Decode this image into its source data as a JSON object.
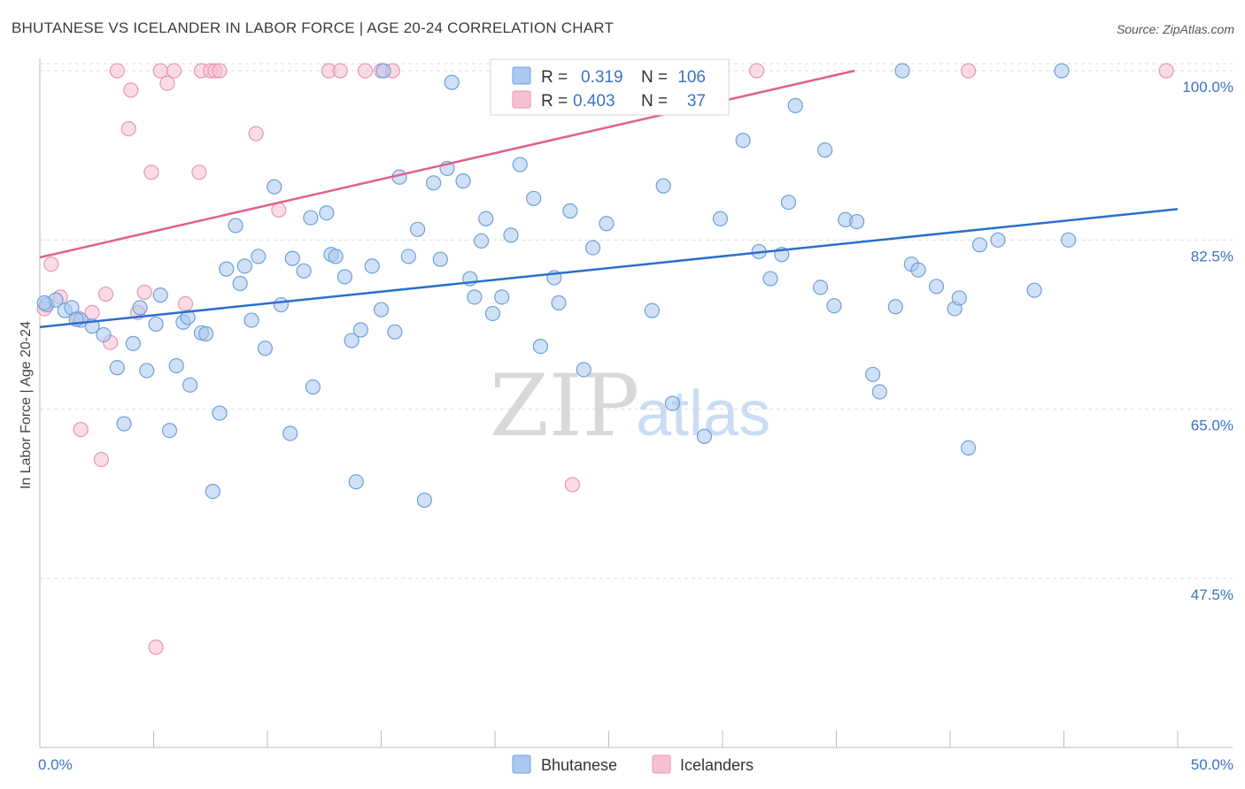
{
  "title": "BHUTANESE VS ICELANDER IN LABOR FORCE | AGE 20-24 CORRELATION CHART",
  "source": "Source: ZipAtlas.com",
  "watermark": {
    "zip": "ZIP",
    "atlas": "atlas"
  },
  "colors": {
    "bhutanese_fill": "#aac8f0",
    "bhutanese_stroke": "#6f9fd8",
    "bhutanese_line": "#2a6fcc",
    "icelanders_fill": "#f7c0d2",
    "icelanders_stroke": "#e896b2",
    "icelanders_line": "#e0608c",
    "axis_text": "#3b73c4",
    "grid": "#dddddd"
  },
  "legend": {
    "rows": [
      {
        "r_label": "R =",
        "r_value": "0.319",
        "n_label": "N =",
        "n_value": "106"
      },
      {
        "r_label": "R =",
        "r_value": "0.403",
        "n_label": "N =",
        "n_value": "37"
      }
    ]
  },
  "chart_data": {
    "type": "scatter",
    "title": "BHUTANESE VS ICELANDER IN LABOR FORCE | AGE 20-24 CORRELATION CHART",
    "xlabel": "",
    "ylabel": "In Labor Force | Age 20-24",
    "xlim": [
      0,
      50
    ],
    "ylim": [
      30,
      101
    ],
    "x_tick_labels": [
      "0.0%",
      "50.0%"
    ],
    "y_ticks": [
      47.5,
      65.0,
      82.5,
      100.0
    ],
    "y_tick_labels": [
      "47.5%",
      "65.0%",
      "82.5%",
      "100.0%"
    ],
    "grid": "horizontal dashed",
    "legend_placement": "top-center",
    "series": [
      {
        "name": "Bhutanese",
        "R": 0.319,
        "N": 106,
        "trendline": [
          [
            0,
            73.5
          ],
          [
            50,
            85.7
          ]
        ],
        "points": [
          [
            0.3,
            75.8
          ],
          [
            0.7,
            76.3
          ],
          [
            1.1,
            75.2
          ],
          [
            1.4,
            75.5
          ],
          [
            1.8,
            74.2
          ],
          [
            2.3,
            73.6
          ],
          [
            2.8,
            72.7
          ],
          [
            3.4,
            69.3
          ],
          [
            3.7,
            63.5
          ],
          [
            4.1,
            71.8
          ],
          [
            4.4,
            75.5
          ],
          [
            4.7,
            69.0
          ],
          [
            5.1,
            73.8
          ],
          [
            5.3,
            76.8
          ],
          [
            5.7,
            62.8
          ],
          [
            6.0,
            69.5
          ],
          [
            6.3,
            74.0
          ],
          [
            6.6,
            67.5
          ],
          [
            7.1,
            72.9
          ],
          [
            7.3,
            72.8
          ],
          [
            7.6,
            56.5
          ],
          [
            7.9,
            64.6
          ],
          [
            8.2,
            79.5
          ],
          [
            8.6,
            84.0
          ],
          [
            8.8,
            78.0
          ],
          [
            9.3,
            74.2
          ],
          [
            9.6,
            80.8
          ],
          [
            9.9,
            71.3
          ],
          [
            10.3,
            88.0
          ],
          [
            10.6,
            75.8
          ],
          [
            11.0,
            62.5
          ],
          [
            11.1,
            80.6
          ],
          [
            11.6,
            79.3
          ],
          [
            11.9,
            84.8
          ],
          [
            12.0,
            67.3
          ],
          [
            12.6,
            85.3
          ],
          [
            12.8,
            81.0
          ],
          [
            13.0,
            80.8
          ],
          [
            13.4,
            78.7
          ],
          [
            13.7,
            72.1
          ],
          [
            13.9,
            57.5
          ],
          [
            14.1,
            73.2
          ],
          [
            14.6,
            79.8
          ],
          [
            15.0,
            75.3
          ],
          [
            15.1,
            100.0
          ],
          [
            15.6,
            73.0
          ],
          [
            15.8,
            89.0
          ],
          [
            16.2,
            80.8
          ],
          [
            16.6,
            83.6
          ],
          [
            16.9,
            55.6
          ],
          [
            17.3,
            88.4
          ],
          [
            17.6,
            80.5
          ],
          [
            17.9,
            89.9
          ],
          [
            18.1,
            98.8
          ],
          [
            18.6,
            88.6
          ],
          [
            18.9,
            78.5
          ],
          [
            19.1,
            76.6
          ],
          [
            19.4,
            82.4
          ],
          [
            19.6,
            84.7
          ],
          [
            19.9,
            74.9
          ],
          [
            20.3,
            76.6
          ],
          [
            20.7,
            83.0
          ],
          [
            21.1,
            90.3
          ],
          [
            21.7,
            86.8
          ],
          [
            22.0,
            71.5
          ],
          [
            22.6,
            78.6
          ],
          [
            22.8,
            76.0
          ],
          [
            23.3,
            85.5
          ],
          [
            23.9,
            69.1
          ],
          [
            24.3,
            81.7
          ],
          [
            24.9,
            84.2
          ],
          [
            26.9,
            75.2
          ],
          [
            27.4,
            88.1
          ],
          [
            27.8,
            65.6
          ],
          [
            29.2,
            62.2
          ],
          [
            29.9,
            84.7
          ],
          [
            30.9,
            92.8
          ],
          [
            31.6,
            81.3
          ],
          [
            32.1,
            78.5
          ],
          [
            32.6,
            81.0
          ],
          [
            32.9,
            86.4
          ],
          [
            33.2,
            96.4
          ],
          [
            34.3,
            77.6
          ],
          [
            34.5,
            91.8
          ],
          [
            34.9,
            75.7
          ],
          [
            35.4,
            84.6
          ],
          [
            35.9,
            84.4
          ],
          [
            36.6,
            68.6
          ],
          [
            36.9,
            66.8
          ],
          [
            37.6,
            75.6
          ],
          [
            37.9,
            100.0
          ],
          [
            38.3,
            80.0
          ],
          [
            38.6,
            79.4
          ],
          [
            39.4,
            77.7
          ],
          [
            40.2,
            75.4
          ],
          [
            40.4,
            76.5
          ],
          [
            40.8,
            61.0
          ],
          [
            41.3,
            82.0
          ],
          [
            42.1,
            82.5
          ],
          [
            43.7,
            77.3
          ],
          [
            44.9,
            100.0
          ],
          [
            45.2,
            82.5
          ],
          [
            0.2,
            76.0
          ],
          [
            1.6,
            74.3
          ],
          [
            6.5,
            74.5
          ],
          [
            9.0,
            79.8
          ]
        ]
      },
      {
        "name": "Icelanders",
        "R": 0.403,
        "N": 37,
        "trendline": [
          [
            0,
            80.7
          ],
          [
            35.8,
            100.0
          ]
        ],
        "points": [
          [
            0.2,
            75.4
          ],
          [
            0.5,
            80.0
          ],
          [
            0.9,
            76.6
          ],
          [
            1.7,
            74.4
          ],
          [
            1.8,
            62.9
          ],
          [
            2.3,
            75.0
          ],
          [
            2.7,
            59.8
          ],
          [
            2.9,
            76.9
          ],
          [
            3.1,
            71.9
          ],
          [
            3.4,
            100.0
          ],
          [
            3.9,
            94.0
          ],
          [
            4.0,
            98.0
          ],
          [
            4.3,
            75.0
          ],
          [
            4.6,
            77.1
          ],
          [
            4.9,
            89.5
          ],
          [
            5.1,
            40.4
          ],
          [
            5.3,
            100.0
          ],
          [
            5.6,
            98.7
          ],
          [
            5.9,
            100.0
          ],
          [
            6.4,
            75.9
          ],
          [
            7.0,
            89.5
          ],
          [
            7.1,
            100.0
          ],
          [
            7.5,
            100.0
          ],
          [
            7.7,
            100.0
          ],
          [
            7.9,
            100.0
          ],
          [
            9.5,
            93.5
          ],
          [
            10.5,
            85.6
          ],
          [
            12.7,
            100.0
          ],
          [
            13.2,
            100.0
          ],
          [
            14.3,
            100.0
          ],
          [
            15.0,
            100.0
          ],
          [
            15.5,
            100.0
          ],
          [
            23.4,
            57.2
          ],
          [
            27.1,
            100.0
          ],
          [
            31.5,
            100.0
          ],
          [
            40.8,
            100.0
          ],
          [
            49.5,
            100.0
          ]
        ]
      }
    ]
  }
}
